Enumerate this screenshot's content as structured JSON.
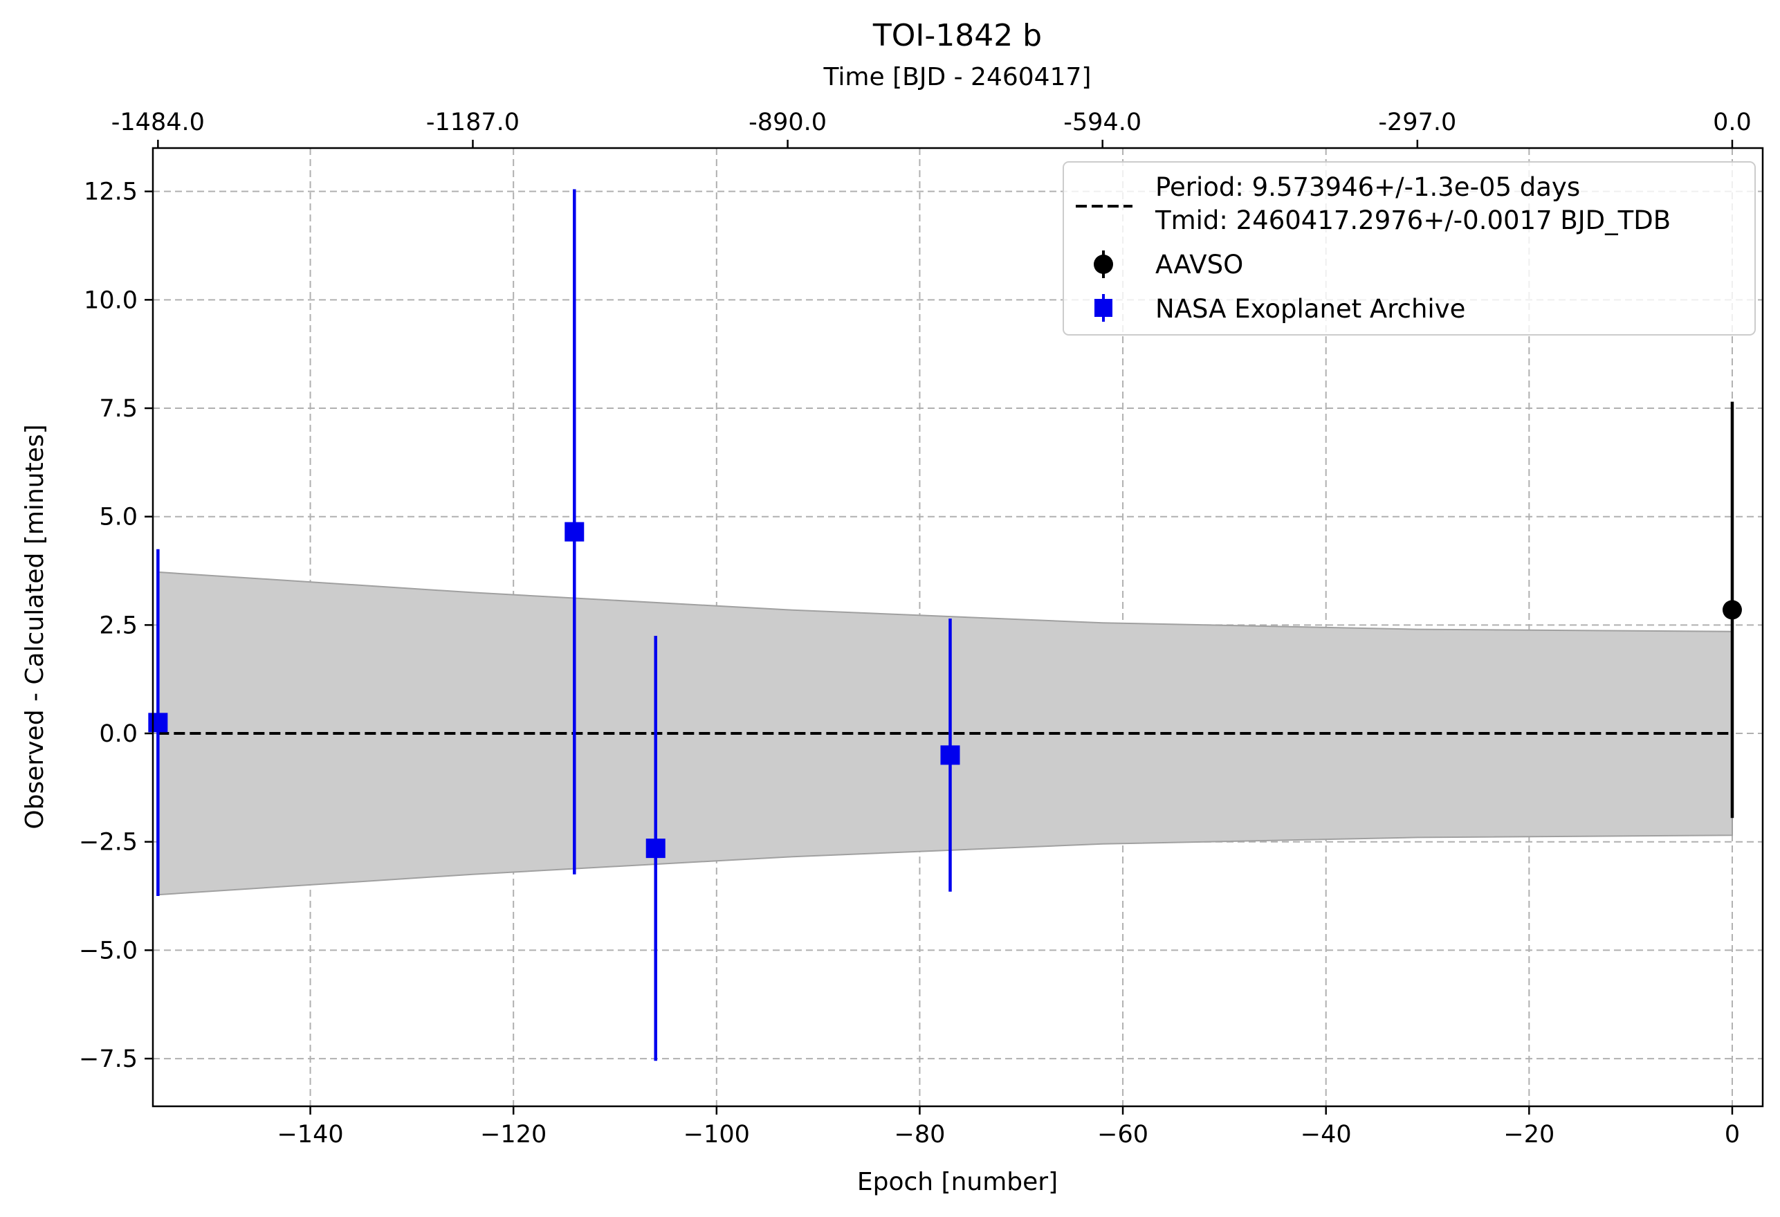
{
  "chart_data": {
    "type": "scatter",
    "title": "TOI-1842 b",
    "xlabel": "Epoch [number]",
    "ylabel": "Observed - Calculated [minutes]",
    "top_xlabel": "Time [BJD - 2460417]",
    "xlim": [
      -155.5,
      3.0
    ],
    "ylim": [
      -8.6,
      13.5
    ],
    "x_ticks": [
      -140,
      -120,
      -100,
      -80,
      -60,
      -40,
      -20,
      0
    ],
    "x_tick_labels": [
      "−140",
      "−120",
      "−100",
      "−80",
      "−60",
      "−40",
      "−20",
      "0"
    ],
    "y_ticks": [
      -7.5,
      -5.0,
      -2.5,
      0.0,
      2.5,
      5.0,
      7.5,
      10.0,
      12.5
    ],
    "y_tick_labels": [
      "−7.5",
      "−5.0",
      "−2.5",
      "0.0",
      "2.5",
      "5.0",
      "7.5",
      "10.0",
      "12.5"
    ],
    "top_ticks_epoch": [
      -155,
      -124,
      -93,
      -62,
      -31,
      0
    ],
    "top_tick_labels": [
      "-1484.0",
      "-1187.0",
      "-890.0",
      "-594.0",
      "-297.0",
      "0.0"
    ],
    "grid": true,
    "legend_position": "top-right",
    "fit_line": {
      "label_line1": "Period: 9.573946+/-1.3e-05 days",
      "label_line2": "Tmid: 2460417.2976+/-0.0017 BJD_TDB",
      "color": "#000000",
      "x": [
        -155,
        0
      ],
      "y": [
        0.0,
        0.0
      ]
    },
    "uncertainty_band": {
      "color": "#cccccc",
      "edge_color": "#a0a0a0",
      "x": [
        -155,
        -124,
        -93,
        -62,
        -31,
        0
      ],
      "upper": [
        3.72,
        3.25,
        2.85,
        2.55,
        2.4,
        2.35
      ],
      "lower": [
        -3.72,
        -3.25,
        -2.85,
        -2.55,
        -2.4,
        -2.35
      ]
    },
    "series": [
      {
        "name": "AAVSO",
        "marker": "circle",
        "color": "#000000",
        "points": [
          {
            "x": 0,
            "y": 2.85,
            "yerr": 4.8
          }
        ]
      },
      {
        "name": "NASA Exoplanet Archive",
        "marker": "square",
        "color": "#0000ee",
        "points": [
          {
            "x": -155,
            "y": 0.25,
            "yerr": 4.0
          },
          {
            "x": -114,
            "y": 4.65,
            "yerr": 7.9
          },
          {
            "x": -106,
            "y": -2.65,
            "yerr": 4.9
          },
          {
            "x": -77,
            "y": -0.5,
            "yerr": 3.15
          }
        ]
      }
    ]
  }
}
